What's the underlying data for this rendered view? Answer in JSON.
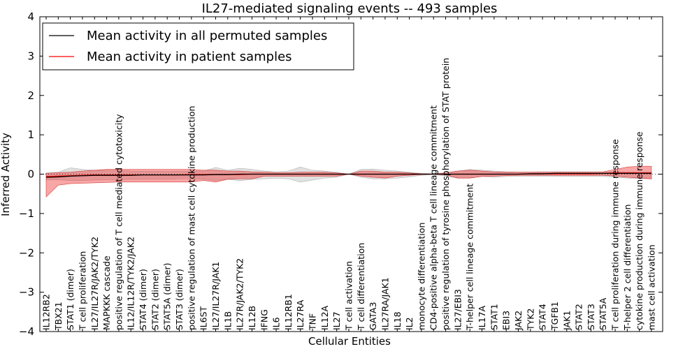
{
  "chart_data": {
    "type": "line",
    "title": "IL27-mediated signaling events -- 493 samples",
    "xlabel": "Cellular Entities",
    "ylabel": "Inferred Activity",
    "ylim": [
      -4,
      4
    ],
    "yticks": [
      -4,
      -3,
      -2,
      -1,
      0,
      1,
      2,
      3,
      4
    ],
    "ytick_labels": [
      "−4",
      "−3",
      "−2",
      "−1",
      "0",
      "1",
      "2",
      "3",
      "4"
    ],
    "grid": false,
    "legend_position": "top-left",
    "categories": [
      "IL12RB2",
      "TBX21",
      "STAT1 (dimer)",
      "T cell proliferation",
      "IL27/IL27R/JAK2/TYK2",
      "MAPKKK cascade",
      "positive regulation of T cell mediated cytotoxicity",
      "IL12/IL12R/TYK2/JAK2",
      "STAT4 (dimer)",
      "STAT2 (dimer)",
      "STAT5A (dimer)",
      "STAT3 (dimer)",
      "positive regulation of mast cell cytokine production",
      "IL6ST",
      "IL27/IL27R/JAK1",
      "IL1B",
      "IL27R/JAK2/TYK2",
      "IL12B",
      "IFNG",
      "IL6",
      "IL12RB1",
      "IL27RA",
      "TNF",
      "IL12A",
      "IL27",
      "T cell activation",
      "T cell differentiation",
      "GATA3",
      "IL27RA/JAK1",
      "IL18",
      "IL2",
      "monocyte differentiation",
      "CD4-positive alpha-beta T cell lineage commitment",
      "positive regulation of tyrosine phosphorylation of STAT protein",
      "IL27/EBI3",
      "T-helper cell lineage commitment",
      "IL17A",
      "STAT1",
      "EBI3",
      "JAK2",
      "TYK2",
      "STAT4",
      "TGFB1",
      "JAK1",
      "STAT2",
      "STAT3",
      "STAT5A",
      "T cell proliferation during immune response",
      "T-helper 2 cell differentiation",
      "cytokine production during immune response",
      "mast cell activation"
    ],
    "legend": [
      "Mean activity in all permuted samples",
      "Mean activity in patient samples"
    ],
    "series": [
      {
        "name": "Mean activity in all permuted samples",
        "color": "#000000",
        "values": [
          -0.08,
          -0.07,
          -0.05,
          -0.04,
          -0.03,
          -0.03,
          -0.03,
          -0.03,
          -0.02,
          -0.02,
          -0.02,
          -0.02,
          -0.02,
          -0.02,
          -0.01,
          -0.01,
          0,
          0,
          0,
          0,
          0,
          0,
          0,
          0,
          0,
          0,
          0,
          0,
          0,
          0,
          0,
          0,
          0,
          0,
          0,
          0,
          0,
          0,
          0,
          0,
          0.01,
          0.01,
          0.02,
          0.02,
          0.02,
          0.02,
          0.02,
          0.02,
          0.02,
          0.02,
          0.02
        ],
        "lower": [
          -0.15,
          -0.14,
          -0.16,
          -0.16,
          -0.15,
          -0.14,
          -0.14,
          -0.13,
          -0.13,
          -0.13,
          -0.13,
          -0.12,
          -0.12,
          -0.13,
          -0.16,
          -0.13,
          -0.17,
          -0.13,
          -0.12,
          -0.1,
          -0.12,
          -0.2,
          -0.15,
          -0.1,
          -0.08,
          0,
          -0.08,
          -0.12,
          -0.12,
          -0.1,
          -0.07,
          -0.03,
          -0.01,
          -0.05,
          -0.1,
          -0.1,
          -0.06,
          -0.08,
          -0.06,
          -0.05,
          -0.05,
          -0.05,
          -0.05,
          -0.06,
          -0.06,
          -0.06,
          -0.06,
          -0.08,
          -0.1,
          -0.11,
          -0.12
        ],
        "upper": [
          0.04,
          0.05,
          0.16,
          0.12,
          0.1,
          0.1,
          0.1,
          0.08,
          0.07,
          0.07,
          0.07,
          0.07,
          0.08,
          0.08,
          0.17,
          0.1,
          0.15,
          0.12,
          0.08,
          0.06,
          0.08,
          0.18,
          0.1,
          0.08,
          0.05,
          0,
          0.12,
          0.13,
          0.1,
          0.08,
          0.05,
          0.02,
          0.01,
          0.04,
          0.08,
          0.12,
          0.1,
          0.08,
          0.06,
          0.05,
          0.05,
          0.06,
          0.06,
          0.06,
          0.06,
          0.06,
          0.06,
          0.05,
          0.05,
          0.05,
          0.05
        ]
      },
      {
        "name": "Mean activity in patient samples",
        "color": "#ff0000",
        "values": [
          -0.06,
          -0.05,
          -0.04,
          -0.03,
          -0.02,
          -0.02,
          -0.02,
          -0.02,
          -0.02,
          -0.02,
          -0.02,
          -0.02,
          -0.01,
          -0.01,
          -0.01,
          -0.01,
          -0.01,
          0,
          0,
          0,
          0,
          0,
          0,
          0,
          0,
          0,
          0,
          0,
          0,
          0,
          0,
          0,
          0,
          0,
          0,
          0,
          0,
          0,
          0,
          0,
          0.01,
          0.01,
          0.01,
          0.01,
          0.01,
          0.01,
          0.02,
          0.03,
          0.03,
          0.03,
          0.03
        ],
        "lower": [
          -0.58,
          -0.28,
          -0.24,
          -0.23,
          -0.22,
          -0.21,
          -0.2,
          -0.2,
          -0.2,
          -0.2,
          -0.2,
          -0.2,
          -0.2,
          -0.16,
          -0.2,
          -0.13,
          -0.12,
          -0.12,
          -0.05,
          -0.05,
          -0.05,
          -0.05,
          -0.05,
          -0.05,
          -0.05,
          0,
          -0.05,
          -0.08,
          -0.1,
          -0.05,
          -0.03,
          -0.01,
          0,
          -0.02,
          -0.1,
          -0.1,
          -0.06,
          -0.05,
          -0.04,
          -0.03,
          -0.03,
          -0.03,
          -0.03,
          -0.03,
          -0.03,
          -0.03,
          -0.03,
          -0.05,
          -0.08,
          -0.1,
          -0.12
        ],
        "upper": [
          0.02,
          0.04,
          0.05,
          0.08,
          0.1,
          0.12,
          0.12,
          0.12,
          0.12,
          0.12,
          0.12,
          0.12,
          0.12,
          0.1,
          0.1,
          0.08,
          0.08,
          0.06,
          0.05,
          0.04,
          0.04,
          0.05,
          0.05,
          0.05,
          0.03,
          0,
          0.08,
          0.08,
          0.05,
          0.05,
          0.03,
          0.01,
          0,
          0.03,
          0.08,
          0.1,
          0.08,
          0.06,
          0.05,
          0.05,
          0.05,
          0.05,
          0.05,
          0.05,
          0.05,
          0.05,
          0.06,
          0.12,
          0.18,
          0.2,
          0.2
        ]
      }
    ]
  }
}
